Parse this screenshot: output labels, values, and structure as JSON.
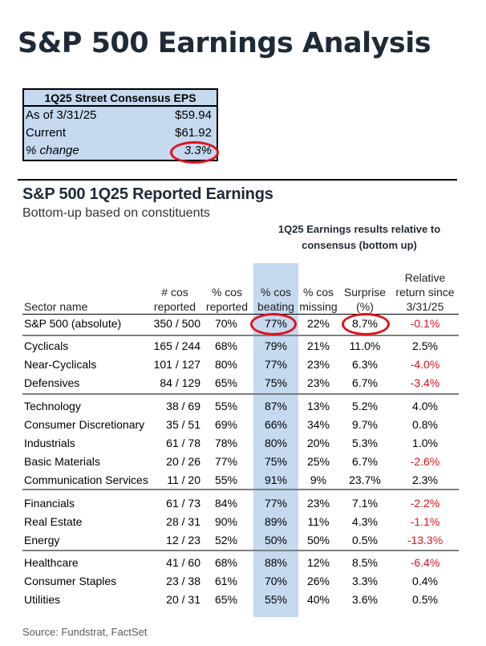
{
  "title": "S&P 500 Earnings Analysis",
  "consensus_box": {
    "heading": "1Q25 Street Consensus EPS",
    "rows": [
      {
        "label": "As of 3/31/25",
        "value": "$59.94"
      },
      {
        "label": "Current",
        "value": "$61.92"
      },
      {
        "label": "% change",
        "value": "3.3%"
      }
    ]
  },
  "table": {
    "title": "S&P 500 1Q25 Reported Earnings",
    "caption": "Bottom-up based on constituents",
    "group_header": "1Q25 Earnings results relative to consensus (bottom up)",
    "columns": {
      "sector": "Sector name",
      "reported": "# cos reported",
      "pct_reported": "% cos reported",
      "beating": "% cos beating",
      "missing": "% cos missing",
      "surprise": "Surprise (%)",
      "relative": "Relative return since 3/31/25"
    },
    "rows": [
      {
        "name": "S&P 500 (absolute)",
        "reported": "350 / 500",
        "pct_reported": "70%",
        "beating": "77%",
        "missing": "22%",
        "surprise": "8.7%",
        "relative": "-0.1%"
      },
      {
        "name": "Cyclicals",
        "reported": "165 / 244",
        "pct_reported": "68%",
        "beating": "79%",
        "missing": "21%",
        "surprise": "11.0%",
        "relative": "2.5%"
      },
      {
        "name": "Near-Cyclicals",
        "reported": "101 / 127",
        "pct_reported": "80%",
        "beating": "77%",
        "missing": "23%",
        "surprise": "6.3%",
        "relative": "-4.0%"
      },
      {
        "name": "Defensives",
        "reported": "84 / 129",
        "pct_reported": "65%",
        "beating": "75%",
        "missing": "23%",
        "surprise": "6.7%",
        "relative": "-3.4%"
      },
      {
        "name": "Technology",
        "reported": "38 / 69",
        "pct_reported": "55%",
        "beating": "87%",
        "missing": "13%",
        "surprise": "5.2%",
        "relative": "4.0%"
      },
      {
        "name": "Consumer Discretionary",
        "reported": "35 / 51",
        "pct_reported": "69%",
        "beating": "66%",
        "missing": "34%",
        "surprise": "9.7%",
        "relative": "0.8%"
      },
      {
        "name": "Industrials",
        "reported": "61 / 78",
        "pct_reported": "78%",
        "beating": "80%",
        "missing": "20%",
        "surprise": "5.3%",
        "relative": "1.0%"
      },
      {
        "name": "Basic Materials",
        "reported": "20 / 26",
        "pct_reported": "77%",
        "beating": "75%",
        "missing": "25%",
        "surprise": "6.7%",
        "relative": "-2.6%"
      },
      {
        "name": "Communication Services",
        "reported": "11 / 20",
        "pct_reported": "55%",
        "beating": "91%",
        "missing": "9%",
        "surprise": "23.7%",
        "relative": "2.3%"
      },
      {
        "name": "Financials",
        "reported": "61 / 73",
        "pct_reported": "84%",
        "beating": "77%",
        "missing": "23%",
        "surprise": "7.1%",
        "relative": "-2.2%"
      },
      {
        "name": "Real Estate",
        "reported": "28 / 31",
        "pct_reported": "90%",
        "beating": "89%",
        "missing": "11%",
        "surprise": "4.3%",
        "relative": "-1.1%"
      },
      {
        "name": "Energy",
        "reported": "12 / 23",
        "pct_reported": "52%",
        "beating": "50%",
        "missing": "50%",
        "surprise": "0.5%",
        "relative": "-13.3%"
      },
      {
        "name": "Healthcare",
        "reported": "41 / 60",
        "pct_reported": "68%",
        "beating": "88%",
        "missing": "12%",
        "surprise": "8.5%",
        "relative": "-6.4%"
      },
      {
        "name": "Consumer Staples",
        "reported": "23 / 38",
        "pct_reported": "61%",
        "beating": "70%",
        "missing": "26%",
        "surprise": "3.3%",
        "relative": "0.4%"
      },
      {
        "name": "Utilities",
        "reported": "20 / 31",
        "pct_reported": "65%",
        "beating": "55%",
        "missing": "40%",
        "surprise": "3.6%",
        "relative": "0.5%"
      }
    ]
  },
  "source": "Source: Fundstrat, FactSet",
  "colors": {
    "highlight_blue": "#c5d9ef",
    "negative_red": "#e3101b",
    "circle_red": "#e3101b",
    "title_navy": "#1e2a38"
  }
}
